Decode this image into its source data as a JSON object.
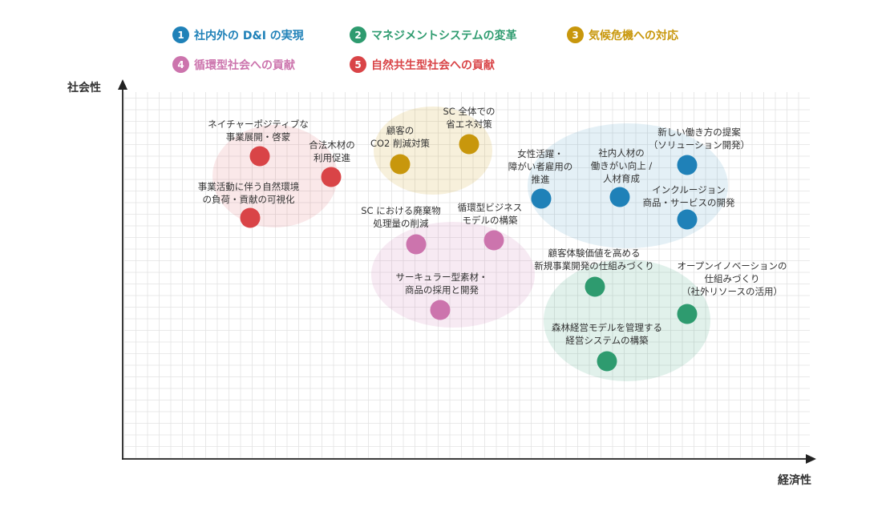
{
  "colors": {
    "c1": "#1f81b8",
    "c2": "#2e9b6f",
    "c3": "#c8970c",
    "c4": "#cc74ad",
    "c5": "#d94447",
    "axis": "#222222",
    "grid": "#e3e3e3"
  },
  "legend": [
    {
      "num": "1",
      "label": "社内外の D&I の実現"
    },
    {
      "num": "2",
      "label": "マネジメントシステムの変革"
    },
    {
      "num": "3",
      "label": "気候危機への対応"
    },
    {
      "num": "4",
      "label": "循環型社会への貢献"
    },
    {
      "num": "5",
      "label": "自然共生型社会への貢献"
    }
  ],
  "axes": {
    "y_label": "社会性",
    "x_label": "経済性"
  },
  "points": [
    {
      "category": "5",
      "label": "ネイチャーポジティブな\n事業展開・啓蒙"
    },
    {
      "category": "5",
      "label": "合法木材の\n利用促進"
    },
    {
      "category": "5",
      "label": "事業活動に伴う自然環境\nの負荷・貢献の可視化"
    },
    {
      "category": "3",
      "label": "顧客の\nCO2 削減対策"
    },
    {
      "category": "3",
      "label": "SC 全体での\n省エネ対策"
    },
    {
      "category": "1",
      "label": "女性活躍・\n障がい者雇用の\n推進"
    },
    {
      "category": "1",
      "label": "社内人材の\n働きがい向上 /\n人材育成"
    },
    {
      "category": "1",
      "label": "新しい働き方の提案\n（ソリューション開発）"
    },
    {
      "category": "1",
      "label": "インクルージョン\n商品・サービスの開発"
    },
    {
      "category": "4",
      "label": "SC における廃棄物\n処理量の削減"
    },
    {
      "category": "4",
      "label": "循環型ビジネス\nモデルの構築"
    },
    {
      "category": "4",
      "label": "サーキュラー型素材・\n商品の採用と開発"
    },
    {
      "category": "2",
      "label": "顧客体験価値を高める\n新規事業開発の仕組みづくり"
    },
    {
      "category": "2",
      "label": "オープンイノベーションの\n仕組みづくり\n（社外リソースの活用）"
    },
    {
      "category": "2",
      "label": "森林経営モデルを管理する\n経営システムの構築"
    }
  ]
}
